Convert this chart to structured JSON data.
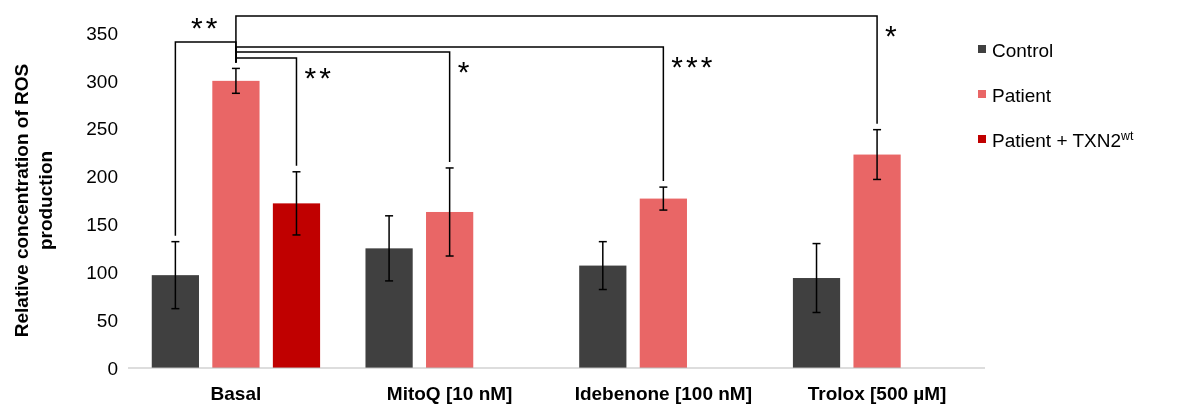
{
  "chart_data": {
    "type": "bar",
    "ylabel": "Relative concentration of ROS production",
    "categories": [
      "Basal",
      "MitoQ [10 nM]",
      "Idebenone [100 nM]",
      "Trolox [500 µM]"
    ],
    "series": [
      {
        "name": "Control",
        "color": "#404040",
        "values": [
          97,
          125,
          107,
          94
        ],
        "errors": [
          35,
          34,
          25,
          36
        ]
      },
      {
        "name": "Patient",
        "color": "#e96666",
        "values": [
          300,
          163,
          177,
          223
        ],
        "errors": [
          13,
          46,
          12,
          26
        ]
      },
      {
        "name": "Patient + TXN2$^{wt}$",
        "color": "#c00000",
        "values": [
          172,
          null,
          null,
          null
        ],
        "errors": [
          33,
          null,
          null,
          null
        ]
      }
    ],
    "ylim": [
      0,
      350
    ],
    "yticks": [
      0,
      50,
      100,
      150,
      200,
      250,
      300,
      350
    ],
    "legend": "right",
    "grid": false,
    "annotations": [
      "**",
      "**",
      "*",
      "***",
      "*"
    ]
  }
}
